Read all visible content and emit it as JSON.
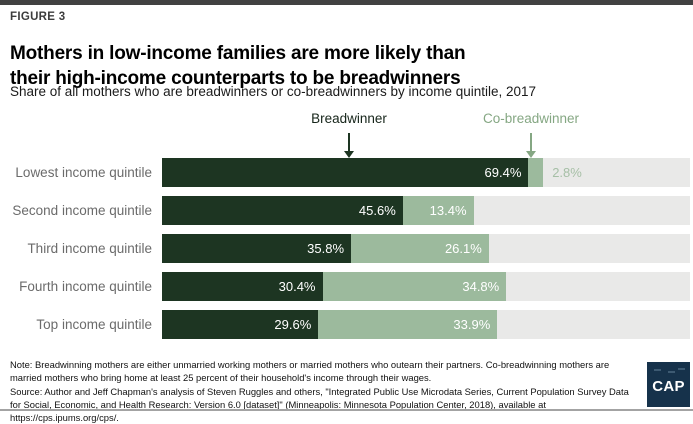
{
  "header": {
    "figure_label": "FIGURE 3",
    "title_line1": "Mothers in low-income families are more likely than",
    "title_line2": "their high-income counterparts to be breadwinners",
    "subtitle": "Share of all mothers who are breadwinners or co-breadwinners by income quintile, 2017"
  },
  "legend": {
    "breadwinner_label": "Breadwinner",
    "cobreadwinner_label": "Co-breadwinner"
  },
  "chart_data": {
    "type": "bar",
    "orientation": "horizontal",
    "stacked": true,
    "title": "Mothers in low-income families are more likely than their high-income counterparts to be breadwinners",
    "subtitle": "Share of all mothers who are breadwinners or co-breadwinners by income quintile, 2017",
    "categories": [
      "Lowest income quintile",
      "Second income quintile",
      "Third income quintile",
      "Fourth income quintile",
      "Top income quintile"
    ],
    "series": [
      {
        "name": "Breadwinner",
        "color": "#1d3522",
        "values": [
          69.4,
          45.6,
          35.8,
          30.4,
          29.6
        ]
      },
      {
        "name": "Co-breadwinner",
        "color": "#9cba9d",
        "values": [
          2.8,
          13.4,
          26.1,
          34.8,
          33.9
        ]
      }
    ],
    "value_suffix": "%",
    "xlim": [
      0,
      100
    ],
    "grid": false,
    "legend_position": "top",
    "track_color": "#e9e9e8",
    "cobreadwinner_text_color": "#85a783"
  },
  "footer": {
    "note": "Note: Breadwinning mothers are either unmarried working mothers or married mothers who outearn their partners. Co-breadwinning mothers are married mothers who bring home at least 25 percent of their household's income through their wages.",
    "source": "Source: Author and Jeff Chapman's analysis of Steven Ruggles and others, \"Integrated Public Use Microdata Series, Current Population Survey Data for Social, Economic, and Health Research: Version 6.0 [dataset]\" (Minneapolis: Minnesota Population Center, 2018), available at https://cps.ipums.org/cps/.",
    "logo_text": "CAP"
  }
}
